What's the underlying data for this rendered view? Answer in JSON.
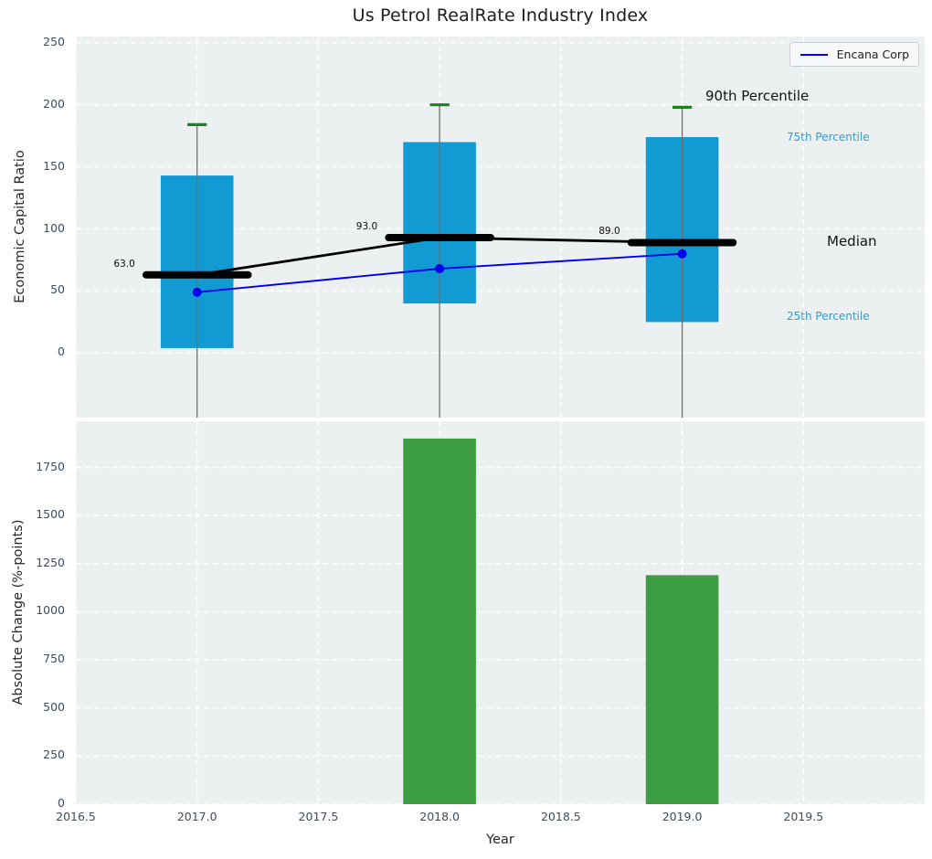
{
  "figure": {
    "title": "Us Petrol RealRate Industry Index",
    "xlabel": "Year"
  },
  "colors": {
    "box_fill": "#129bd2",
    "bar_fill": "#3d9e41",
    "cap_green": "#1e8023",
    "encana_blue": "#0000ee",
    "median_black": "#000000",
    "whisker_gray": "#6e6e6e",
    "axes_bg": "#ecf0f1",
    "grid_white": "#ffffff",
    "tick_text": "#3b4d61",
    "percentile_text": "#2b9fd1"
  },
  "legend": {
    "position": "upper right",
    "entries": [
      {
        "label": "Encana Corp",
        "color": "#0000ee"
      }
    ]
  },
  "annotations": {
    "p90": "90th Percentile",
    "p75": "75th Percentile",
    "median": "Median",
    "p25": "25th Percentile"
  },
  "chart_data": [
    {
      "type": "box",
      "panel": "top",
      "title": "Us Petrol RealRate Industry Index",
      "ylabel": "Economic Capital Ratio",
      "xlabel": "",
      "xlim": [
        2016.5,
        2020.0
      ],
      "ylim": [
        -52,
        255
      ],
      "xticks": [
        2016.5,
        2017.0,
        2017.5,
        2018.0,
        2018.5,
        2019.0,
        2019.5
      ],
      "yticks": [
        0,
        50,
        100,
        150,
        200,
        250
      ],
      "grid": true,
      "boxes": [
        {
          "x": 2017,
          "p90_whisker": 184,
          "q3": 143,
          "median": 63,
          "q1": 4,
          "median_label": "63.0"
        },
        {
          "x": 2018,
          "p90_whisker": 200,
          "q3": 170,
          "median": 93,
          "q1": 40,
          "median_label": "93.0"
        },
        {
          "x": 2019,
          "p90_whisker": 198,
          "q3": 174,
          "median": 89,
          "q1": 25,
          "median_label": "89.0"
        }
      ],
      "series": [
        {
          "name": "Encana Corp",
          "x": [
            2017,
            2018,
            2019
          ],
          "values": [
            49,
            68,
            80
          ],
          "marker": "circle"
        }
      ]
    },
    {
      "type": "bar",
      "panel": "bottom",
      "ylabel": "Absolute Change (%-points)",
      "xlabel": "Year",
      "xlim": [
        2016.5,
        2020.0
      ],
      "ylim": [
        0,
        1990
      ],
      "xticks": [
        2016.5,
        2017.0,
        2017.5,
        2018.0,
        2018.5,
        2019.0,
        2019.5
      ],
      "yticks": [
        0,
        250,
        500,
        750,
        1000,
        1250,
        1500,
        1750
      ],
      "grid": true,
      "x": [
        2018,
        2019
      ],
      "values": [
        1900,
        1190
      ]
    }
  ]
}
